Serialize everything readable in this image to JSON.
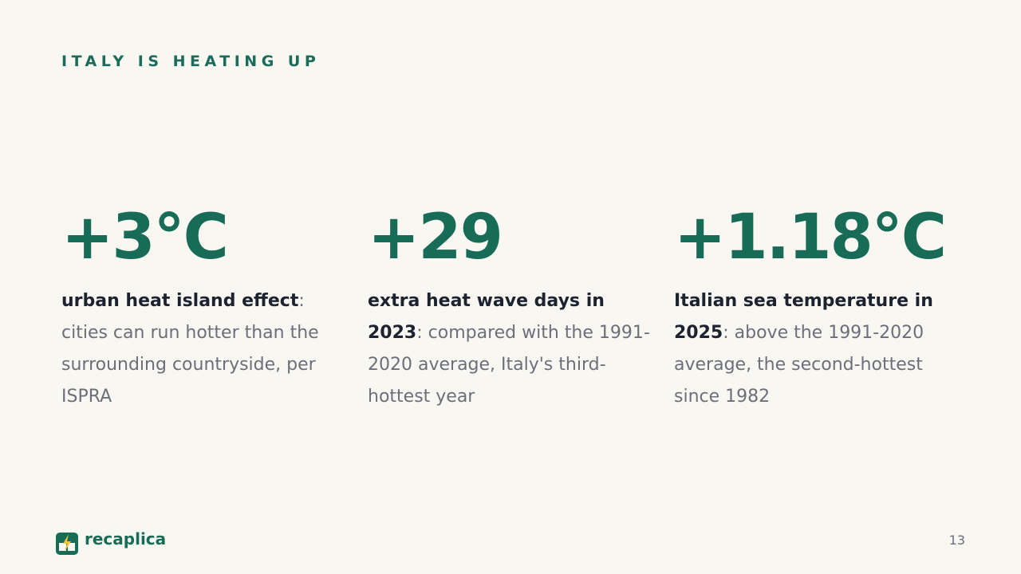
{
  "header": {
    "title": "ITALY IS HEATING UP"
  },
  "stats": [
    {
      "value": "+3°C",
      "lead": "urban heat island effect",
      "text": ": cities can run hotter than the surrounding countryside, per ISPRA"
    },
    {
      "value": "+29",
      "lead": "extra heat wave days in 2023",
      "text": ": compared with the 1991-2020 average, Italy's third-hottest year"
    },
    {
      "value": "+1.18°C",
      "lead": "Italian sea temperature in 2025",
      "text": ": above the 1991-2020 average, the second-hottest since 1982"
    }
  ],
  "footer": {
    "brand": "recaplica",
    "page": "13"
  }
}
